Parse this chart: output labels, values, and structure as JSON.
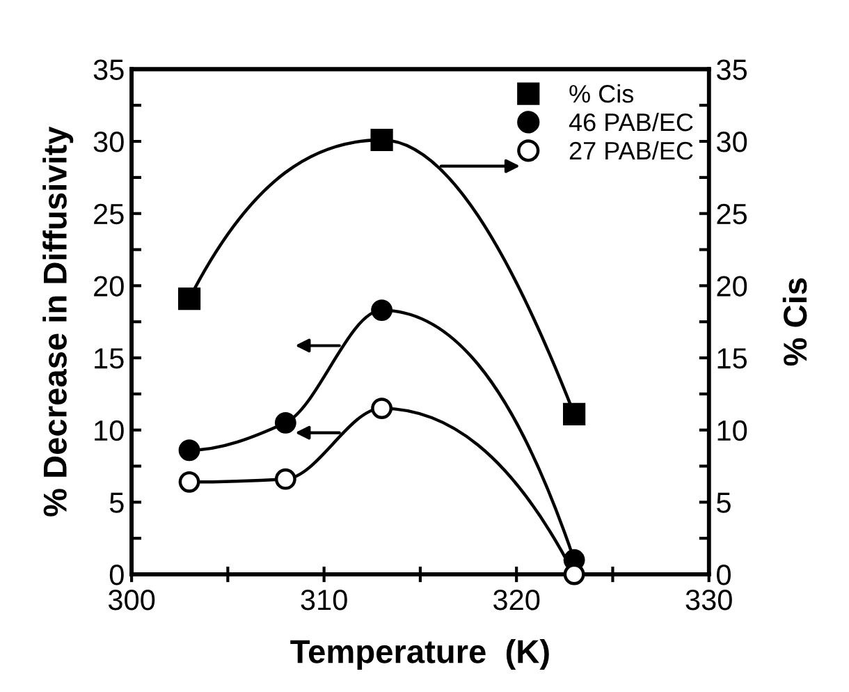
{
  "chart_data": {
    "type": "line",
    "xlabel": "Temperature  (K)",
    "ylabel": "% Decrease in Diffusivity",
    "y2label": "% Cis",
    "xlim": [
      300,
      330
    ],
    "xticks": [
      300,
      {
        "value": 305,
        "label": null
      },
      310,
      {
        "value": 315,
        "label": null
      },
      320,
      {
        "value": 325,
        "label": null
      },
      330
    ],
    "ylim": [
      0,
      35
    ],
    "yticks": [
      0,
      {
        "value": 2.5,
        "label": null
      },
      5,
      {
        "value": 7.5,
        "label": null
      },
      10,
      {
        "value": 12.5,
        "label": null
      },
      15,
      {
        "value": 17.5,
        "label": null
      },
      20,
      {
        "value": 22.5,
        "label": null
      },
      25,
      {
        "value": 27.5,
        "label": null
      },
      30,
      {
        "value": 32.5,
        "label": null
      },
      35
    ],
    "y2lim": [
      0,
      35
    ],
    "y2ticks": [
      0,
      {
        "value": 2.5,
        "label": null
      },
      5,
      {
        "value": 7.5,
        "label": null
      },
      10,
      {
        "value": 12.5,
        "label": null
      },
      15,
      {
        "value": 17.5,
        "label": null
      },
      20,
      {
        "value": 22.5,
        "label": null
      },
      25,
      {
        "value": 27.5,
        "label": null
      },
      30,
      {
        "value": 32.5,
        "label": null
      },
      35
    ],
    "grid": false,
    "legend": "top right",
    "line_style": "solid",
    "series": [
      {
        "name": "46 PAB/EC",
        "color": "#000000",
        "marker": "circle",
        "x": [
          303,
          308,
          313,
          323
        ],
        "values": [
          8.6,
          10.5,
          18.3,
          1.0
        ]
      },
      {
        "name": "27 PAB/EC",
        "color": "#000000",
        "marker": "open circle",
        "x": [
          303,
          308,
          313,
          323
        ],
        "values": [
          6.4,
          6.6,
          11.5,
          0
        ]
      },
      {
        "name": "% Cis",
        "color": "#000000",
        "marker": "square",
        "axis": "y2",
        "x": [
          303,
          313,
          323
        ],
        "values": [
          19.1,
          30.1,
          11.1
        ]
      }
    ]
  }
}
